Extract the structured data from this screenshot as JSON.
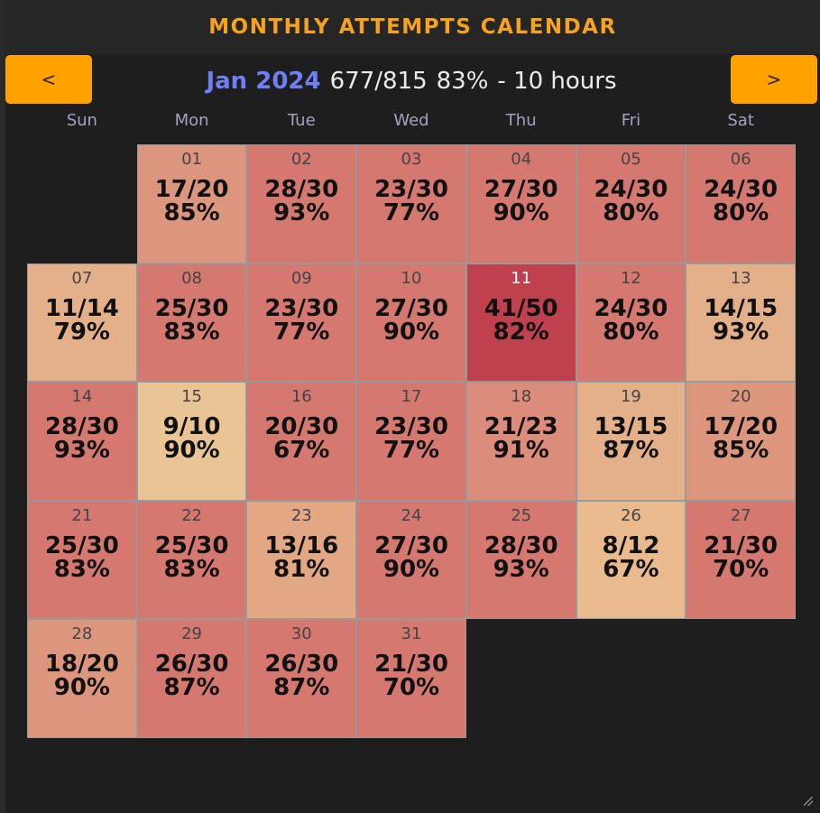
{
  "title": "MONTHLY ATTEMPTS CALENDAR",
  "nav": {
    "prev_label": "<",
    "next_label": ">"
  },
  "header": {
    "month": "Jan 2024",
    "summary_ratio": "677/815",
    "summary_percent": "83%",
    "summary_duration": "- 10 hours"
  },
  "weekdays": [
    "Sun",
    "Mon",
    "Tue",
    "Wed",
    "Thu",
    "Fri",
    "Sat"
  ],
  "days": [
    {
      "day": "01",
      "ratio": "17/20",
      "percent": "85%",
      "color": "#dc967e"
    },
    {
      "day": "02",
      "ratio": "28/30",
      "percent": "93%",
      "color": "#d47870"
    },
    {
      "day": "03",
      "ratio": "23/30",
      "percent": "77%",
      "color": "#d47870"
    },
    {
      "day": "04",
      "ratio": "27/30",
      "percent": "90%",
      "color": "#d47870"
    },
    {
      "day": "05",
      "ratio": "24/30",
      "percent": "80%",
      "color": "#d47870"
    },
    {
      "day": "06",
      "ratio": "24/30",
      "percent": "80%",
      "color": "#d47870"
    },
    {
      "day": "07",
      "ratio": "11/14",
      "percent": "79%",
      "color": "#e4b08a"
    },
    {
      "day": "08",
      "ratio": "25/30",
      "percent": "83%",
      "color": "#d47870"
    },
    {
      "day": "09",
      "ratio": "23/30",
      "percent": "77%",
      "color": "#d47870"
    },
    {
      "day": "10",
      "ratio": "27/30",
      "percent": "90%",
      "color": "#d47870"
    },
    {
      "day": "11",
      "ratio": "41/50",
      "percent": "82%",
      "color": "#c0414e",
      "today": true
    },
    {
      "day": "12",
      "ratio": "24/30",
      "percent": "80%",
      "color": "#d47870"
    },
    {
      "day": "13",
      "ratio": "14/15",
      "percent": "93%",
      "color": "#e4b08a"
    },
    {
      "day": "14",
      "ratio": "28/30",
      "percent": "93%",
      "color": "#d47870"
    },
    {
      "day": "15",
      "ratio": "9/10",
      "percent": "90%",
      "color": "#e9c494"
    },
    {
      "day": "16",
      "ratio": "20/30",
      "percent": "67%",
      "color": "#d47870"
    },
    {
      "day": "17",
      "ratio": "23/30",
      "percent": "77%",
      "color": "#d47870"
    },
    {
      "day": "18",
      "ratio": "21/23",
      "percent": "91%",
      "color": "#dc8c7a"
    },
    {
      "day": "19",
      "ratio": "13/15",
      "percent": "87%",
      "color": "#e4b08a"
    },
    {
      "day": "20",
      "ratio": "17/20",
      "percent": "85%",
      "color": "#dc967e"
    },
    {
      "day": "21",
      "ratio": "25/30",
      "percent": "83%",
      "color": "#d47870"
    },
    {
      "day": "22",
      "ratio": "25/30",
      "percent": "83%",
      "color": "#d47870"
    },
    {
      "day": "23",
      "ratio": "13/16",
      "percent": "81%",
      "color": "#e2a884"
    },
    {
      "day": "24",
      "ratio": "27/30",
      "percent": "90%",
      "color": "#d47870"
    },
    {
      "day": "25",
      "ratio": "28/30",
      "percent": "93%",
      "color": "#d47870"
    },
    {
      "day": "26",
      "ratio": "8/12",
      "percent": "67%",
      "color": "#e8ba8e"
    },
    {
      "day": "27",
      "ratio": "21/30",
      "percent": "70%",
      "color": "#d47870"
    },
    {
      "day": "28",
      "ratio": "18/20",
      "percent": "90%",
      "color": "#dc967e"
    },
    {
      "day": "29",
      "ratio": "26/30",
      "percent": "87%",
      "color": "#d47870"
    },
    {
      "day": "30",
      "ratio": "26/30",
      "percent": "87%",
      "color": "#d47870"
    },
    {
      "day": "31",
      "ratio": "21/30",
      "percent": "70%",
      "color": "#d47870"
    }
  ],
  "first_weekday_offset": 1
}
